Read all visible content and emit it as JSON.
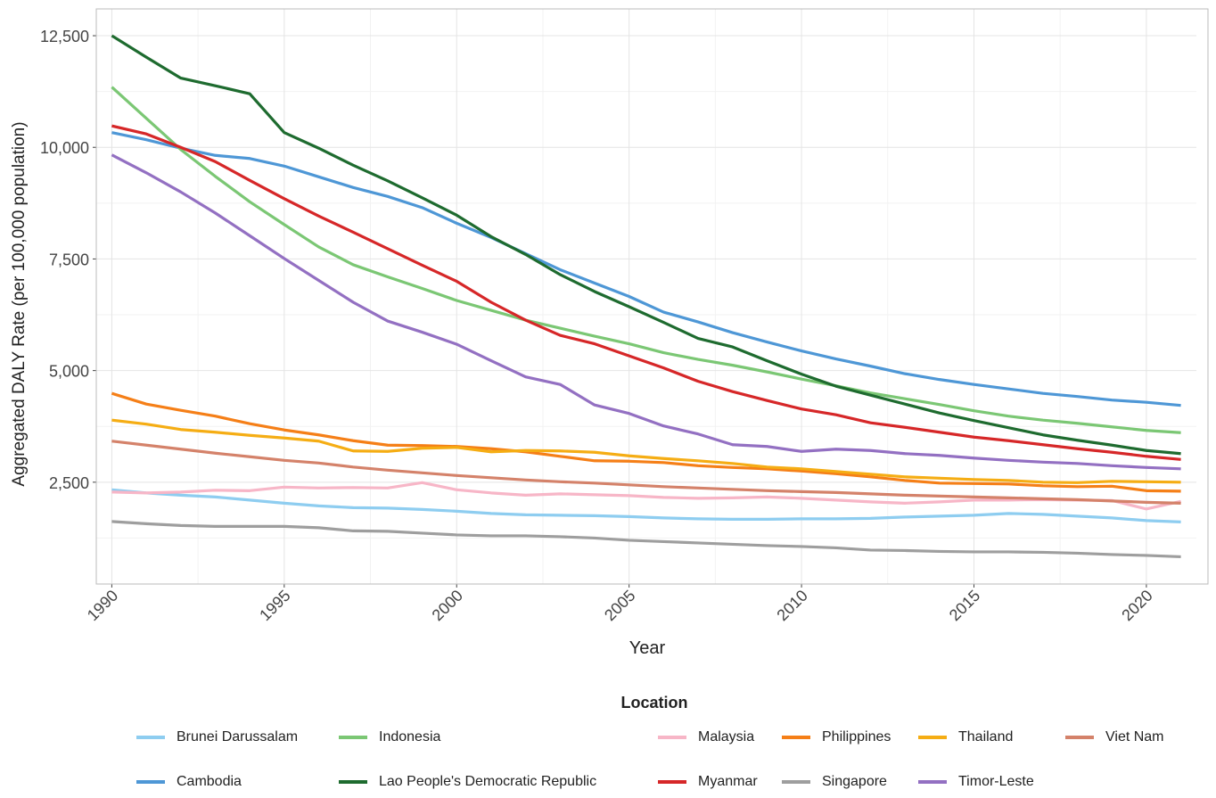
{
  "chart_data": {
    "type": "line",
    "title": "",
    "xlabel": "Year",
    "ylabel": "Aggregated DALY Rate (per 100,000 population)",
    "xlim": [
      1989.55,
      2021.45
    ],
    "ylim": [
      220,
      13100
    ],
    "grid": true,
    "xticks": [
      1990,
      1995,
      2000,
      2005,
      2010,
      2015,
      2020
    ],
    "yticks": [
      2500,
      5000,
      7500,
      10000,
      12500
    ],
    "ytick_labels": [
      "2,500",
      "5,000",
      "7,500",
      "10,000",
      "12,500"
    ],
    "legend_title": "Location",
    "legend_position": "bottom",
    "x": [
      1990,
      1991,
      1992,
      1993,
      1994,
      1995,
      1996,
      1997,
      1998,
      1999,
      2000,
      2001,
      2002,
      2003,
      2004,
      2005,
      2006,
      2007,
      2008,
      2009,
      2010,
      2011,
      2012,
      2013,
      2014,
      2015,
      2016,
      2017,
      2018,
      2019,
      2020,
      2021
    ],
    "series": [
      {
        "name": "Brunei Darussalam",
        "color": "#8ecdf0",
        "values": [
          2330,
          2260,
          2210,
          2170,
          2100,
          2030,
          1970,
          1930,
          1920,
          1890,
          1850,
          1800,
          1770,
          1760,
          1750,
          1730,
          1700,
          1680,
          1670,
          1670,
          1680,
          1680,
          1690,
          1720,
          1740,
          1760,
          1800,
          1780,
          1740,
          1700,
          1640,
          1610
        ]
      },
      {
        "name": "Cambodia",
        "color": "#4e97d6",
        "values": [
          10330,
          10170,
          9980,
          9820,
          9750,
          9580,
          9340,
          9100,
          8900,
          8650,
          8300,
          7980,
          7620,
          7260,
          6960,
          6660,
          6310,
          6090,
          5850,
          5640,
          5440,
          5260,
          5100,
          4930,
          4800,
          4690,
          4590,
          4490,
          4420,
          4340,
          4290,
          4220
        ]
      },
      {
        "name": "Indonesia",
        "color": "#7bc774",
        "values": [
          11350,
          10650,
          9950,
          9350,
          8780,
          8270,
          7770,
          7370,
          7100,
          6840,
          6570,
          6350,
          6130,
          5950,
          5770,
          5600,
          5400,
          5250,
          5120,
          4970,
          4810,
          4660,
          4500,
          4370,
          4240,
          4100,
          3980,
          3890,
          3820,
          3740,
          3660,
          3610
        ]
      },
      {
        "name": "Lao People's Democratic Republic",
        "color": "#1e6b2f",
        "values": [
          12500,
          12020,
          11550,
          11380,
          11200,
          10330,
          9980,
          9600,
          9250,
          8870,
          8480,
          8000,
          7600,
          7150,
          6770,
          6430,
          6080,
          5720,
          5530,
          5220,
          4920,
          4650,
          4450,
          4250,
          4050,
          3880,
          3720,
          3560,
          3440,
          3330,
          3210,
          3140
        ]
      },
      {
        "name": "Malaysia",
        "color": "#f7b6c7",
        "values": [
          2280,
          2260,
          2280,
          2320,
          2310,
          2390,
          2370,
          2380,
          2370,
          2490,
          2330,
          2260,
          2210,
          2240,
          2220,
          2200,
          2160,
          2140,
          2150,
          2170,
          2140,
          2100,
          2060,
          2030,
          2060,
          2100,
          2100,
          2110,
          2100,
          2090,
          1900,
          2070
        ]
      },
      {
        "name": "Myanmar",
        "color": "#d62728",
        "values": [
          10480,
          10300,
          10000,
          9680,
          9260,
          8850,
          8460,
          8100,
          7730,
          7360,
          7000,
          6530,
          6130,
          5790,
          5600,
          5330,
          5060,
          4760,
          4530,
          4330,
          4140,
          4010,
          3830,
          3730,
          3620,
          3510,
          3430,
          3340,
          3250,
          3170,
          3080,
          3010
        ]
      },
      {
        "name": "Philippines",
        "color": "#f57f17",
        "values": [
          4490,
          4250,
          4110,
          3980,
          3810,
          3670,
          3560,
          3430,
          3330,
          3320,
          3300,
          3250,
          3180,
          3080,
          2980,
          2970,
          2940,
          2870,
          2830,
          2800,
          2750,
          2690,
          2620,
          2540,
          2480,
          2470,
          2460,
          2420,
          2400,
          2410,
          2310,
          2300
        ]
      },
      {
        "name": "Singapore",
        "color": "#9e9e9e",
        "values": [
          1620,
          1570,
          1530,
          1510,
          1510,
          1510,
          1480,
          1410,
          1400,
          1360,
          1320,
          1300,
          1300,
          1280,
          1250,
          1200,
          1170,
          1140,
          1110,
          1080,
          1060,
          1030,
          980,
          970,
          950,
          940,
          940,
          930,
          910,
          880,
          860,
          830
        ]
      },
      {
        "name": "Thailand",
        "color": "#f5ad14",
        "values": [
          3890,
          3800,
          3680,
          3620,
          3550,
          3490,
          3420,
          3200,
          3190,
          3260,
          3280,
          3180,
          3210,
          3200,
          3170,
          3090,
          3030,
          2980,
          2920,
          2840,
          2800,
          2740,
          2680,
          2620,
          2590,
          2560,
          2540,
          2500,
          2490,
          2520,
          2510,
          2500
        ]
      },
      {
        "name": "Timor-Leste",
        "color": "#9370c2",
        "values": [
          9830,
          9430,
          9000,
          8530,
          8020,
          7510,
          7020,
          6530,
          6110,
          5860,
          5590,
          5220,
          4860,
          4690,
          4230,
          4040,
          3760,
          3580,
          3340,
          3300,
          3190,
          3240,
          3210,
          3140,
          3100,
          3040,
          2990,
          2950,
          2920,
          2870,
          2830,
          2800
        ]
      },
      {
        "name": "Viet Nam",
        "color": "#d4826a",
        "values": [
          3420,
          3330,
          3240,
          3150,
          3070,
          2990,
          2930,
          2840,
          2770,
          2710,
          2650,
          2600,
          2550,
          2510,
          2480,
          2440,
          2400,
          2370,
          2340,
          2310,
          2290,
          2270,
          2240,
          2210,
          2190,
          2170,
          2150,
          2130,
          2110,
          2080,
          2050,
          2030
        ]
      }
    ]
  }
}
